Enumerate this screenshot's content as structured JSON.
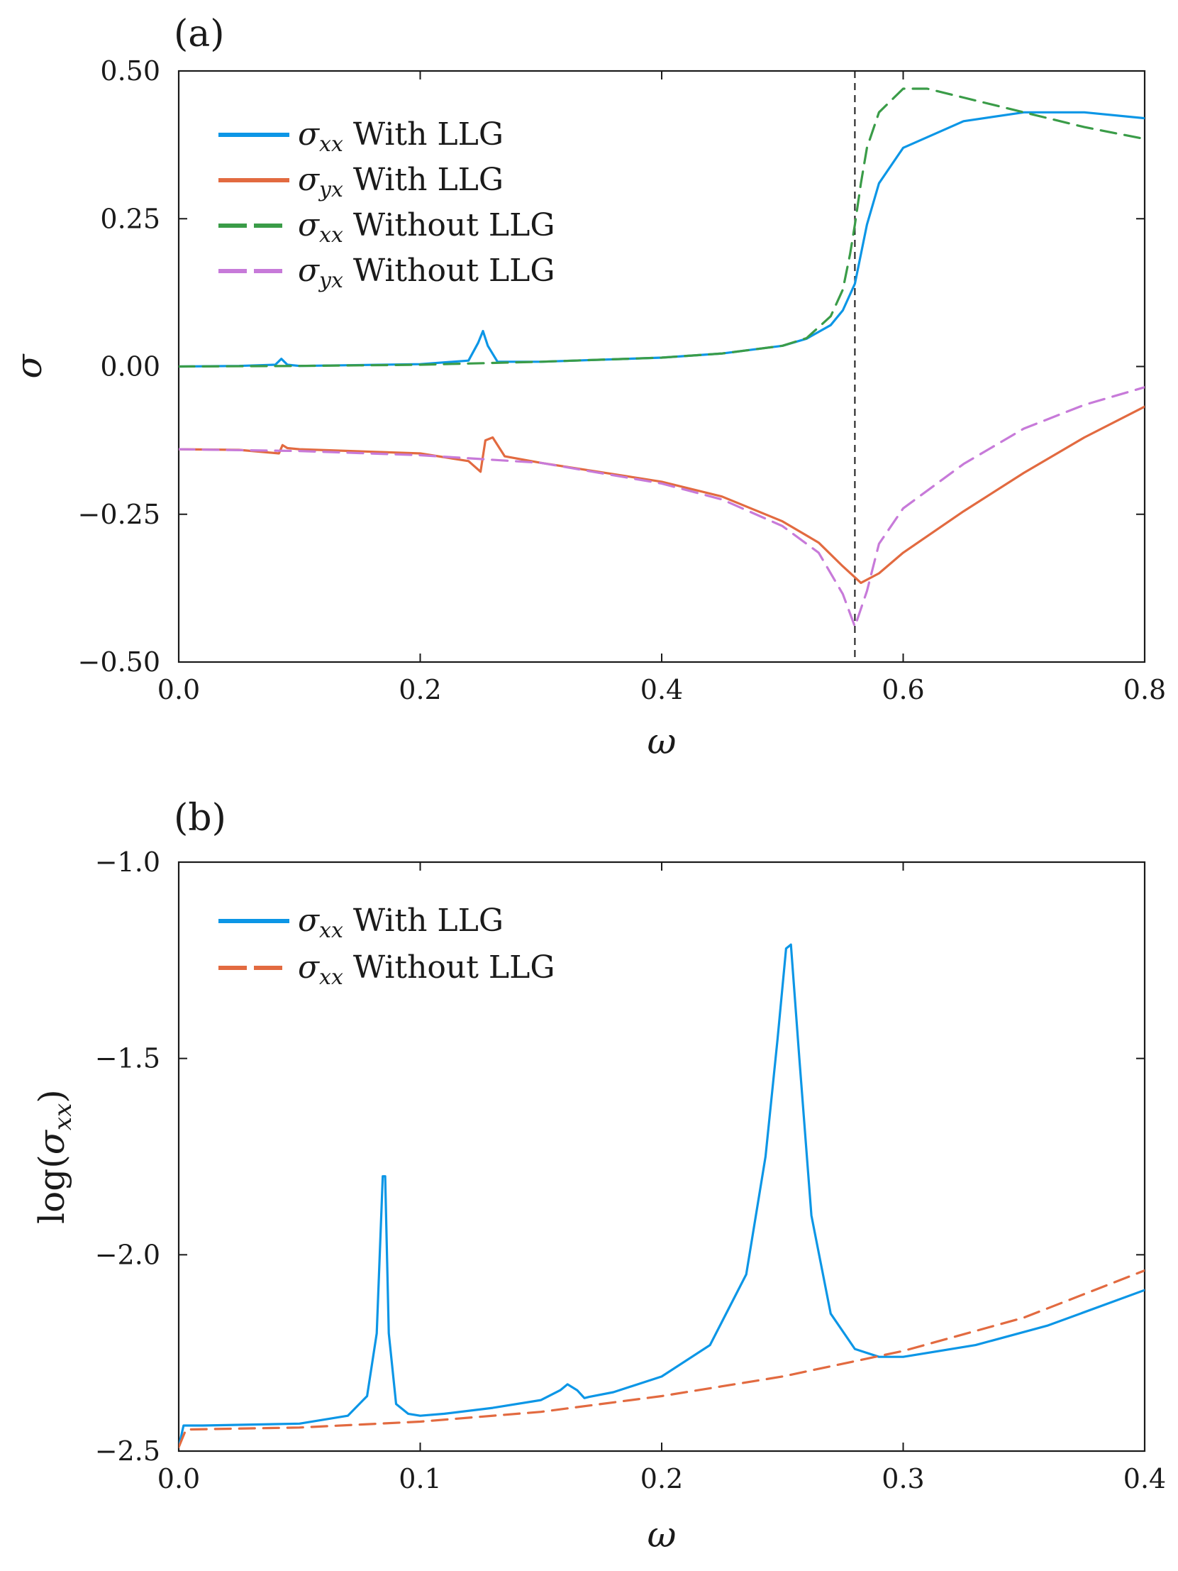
{
  "chart_data": [
    {
      "panel": "(a)",
      "type": "line",
      "xlabel": "ω",
      "ylabel": "σ",
      "xlim": [
        0.0,
        0.8
      ],
      "ylim": [
        -0.5,
        0.5
      ],
      "xticks": [
        "0.0",
        "0.2",
        "0.4",
        "0.6",
        "0.8"
      ],
      "yticks": [
        "0.50",
        "0.25",
        "0.00",
        "−0.25",
        "−0.50"
      ],
      "grid": false,
      "legend_position": "top-left",
      "vline_x": 0.56,
      "series": [
        {
          "name_symbol": "σ",
          "name_sub": "xx",
          "name_text": "With LLG",
          "color": "#0c96e6",
          "style": "solid",
          "x": [
            0.0,
            0.05,
            0.08,
            0.085,
            0.09,
            0.1,
            0.2,
            0.24,
            0.248,
            0.252,
            0.256,
            0.264,
            0.3,
            0.4,
            0.45,
            0.5,
            0.52,
            0.54,
            0.55,
            0.56,
            0.57,
            0.58,
            0.6,
            0.65,
            0.7,
            0.75,
            0.8
          ],
          "y": [
            0.0,
            0.001,
            0.003,
            0.013,
            0.003,
            0.001,
            0.004,
            0.01,
            0.04,
            0.06,
            0.035,
            0.008,
            0.008,
            0.015,
            0.022,
            0.035,
            0.047,
            0.07,
            0.095,
            0.14,
            0.24,
            0.31,
            0.37,
            0.415,
            0.43,
            0.43,
            0.42
          ]
        },
        {
          "name_symbol": "σ",
          "name_sub": "yx",
          "name_text": "With LLG",
          "color": "#e26a40",
          "style": "solid",
          "x": [
            0.0,
            0.05,
            0.083,
            0.086,
            0.09,
            0.1,
            0.2,
            0.24,
            0.25,
            0.254,
            0.26,
            0.27,
            0.3,
            0.4,
            0.45,
            0.5,
            0.53,
            0.55,
            0.565,
            0.58,
            0.6,
            0.65,
            0.7,
            0.75,
            0.8
          ],
          "y": [
            -0.14,
            -0.141,
            -0.147,
            -0.133,
            -0.138,
            -0.14,
            -0.147,
            -0.16,
            -0.178,
            -0.125,
            -0.12,
            -0.152,
            -0.163,
            -0.195,
            -0.22,
            -0.262,
            -0.298,
            -0.338,
            -0.366,
            -0.35,
            -0.315,
            -0.245,
            -0.18,
            -0.12,
            -0.068
          ]
        },
        {
          "name_symbol": "σ",
          "name_sub": "xx",
          "name_text": "Without LLG",
          "color": "#3a9c48",
          "style": "dashed",
          "x": [
            0.0,
            0.1,
            0.2,
            0.3,
            0.4,
            0.45,
            0.5,
            0.52,
            0.54,
            0.55,
            0.556,
            0.56,
            0.565,
            0.57,
            0.58,
            0.6,
            0.62,
            0.65,
            0.7,
            0.75,
            0.8
          ],
          "y": [
            0.0,
            0.001,
            0.003,
            0.008,
            0.015,
            0.022,
            0.035,
            0.048,
            0.085,
            0.13,
            0.19,
            0.24,
            0.31,
            0.37,
            0.43,
            0.47,
            0.47,
            0.455,
            0.43,
            0.405,
            0.385
          ]
        },
        {
          "name_symbol": "σ",
          "name_sub": "yx",
          "name_text": "Without LLG",
          "color": "#c77ad9",
          "style": "dashed",
          "x": [
            0.0,
            0.1,
            0.2,
            0.3,
            0.4,
            0.45,
            0.5,
            0.53,
            0.55,
            0.56,
            0.57,
            0.58,
            0.6,
            0.65,
            0.7,
            0.75,
            0.8
          ],
          "y": [
            -0.14,
            -0.143,
            -0.15,
            -0.163,
            -0.198,
            -0.225,
            -0.27,
            -0.315,
            -0.385,
            -0.44,
            -0.38,
            -0.3,
            -0.24,
            -0.165,
            -0.105,
            -0.065,
            -0.035
          ]
        }
      ]
    },
    {
      "panel": "(b)",
      "type": "line",
      "xlabel": "ω",
      "ylabel": "log(σ",
      "ylabel_sub": "xx",
      "ylabel_close": ")",
      "xlim": [
        0.0,
        0.4
      ],
      "ylim": [
        -2.5,
        -1.0
      ],
      "xticks": [
        "0.0",
        "0.1",
        "0.2",
        "0.3",
        "0.4"
      ],
      "yticks": [
        "−1.0",
        "−1.5",
        "−2.0",
        "−2.5"
      ],
      "grid": false,
      "legend_position": "top-left",
      "series": [
        {
          "name_symbol": "σ",
          "name_sub": "xx",
          "name_text": "With LLG",
          "color": "#0c96e6",
          "style": "solid",
          "x": [
            0.0,
            0.002,
            0.01,
            0.05,
            0.07,
            0.078,
            0.082,
            0.0845,
            0.0855,
            0.087,
            0.09,
            0.095,
            0.1,
            0.11,
            0.13,
            0.15,
            0.158,
            0.161,
            0.165,
            0.168,
            0.17,
            0.18,
            0.2,
            0.22,
            0.235,
            0.243,
            0.248,
            0.2515,
            0.2535,
            0.257,
            0.262,
            0.27,
            0.28,
            0.29,
            0.3,
            0.33,
            0.36,
            0.4
          ],
          "y": [
            -2.49,
            -2.435,
            -2.435,
            -2.43,
            -2.41,
            -2.36,
            -2.2,
            -1.8,
            -1.8,
            -2.2,
            -2.38,
            -2.405,
            -2.41,
            -2.405,
            -2.39,
            -2.37,
            -2.345,
            -2.33,
            -2.345,
            -2.365,
            -2.362,
            -2.35,
            -2.31,
            -2.23,
            -2.05,
            -1.75,
            -1.45,
            -1.22,
            -1.21,
            -1.5,
            -1.9,
            -2.15,
            -2.24,
            -2.26,
            -2.26,
            -2.23,
            -2.18,
            -2.09
          ]
        },
        {
          "name_symbol": "σ",
          "name_sub": "xx",
          "name_text": "Without LLG",
          "color": "#e26a40",
          "style": "dashed",
          "x": [
            0.0,
            0.003,
            0.05,
            0.1,
            0.15,
            0.2,
            0.25,
            0.3,
            0.35,
            0.4
          ],
          "y": [
            -2.49,
            -2.445,
            -2.44,
            -2.425,
            -2.4,
            -2.36,
            -2.31,
            -2.245,
            -2.16,
            -2.04
          ]
        }
      ]
    }
  ]
}
